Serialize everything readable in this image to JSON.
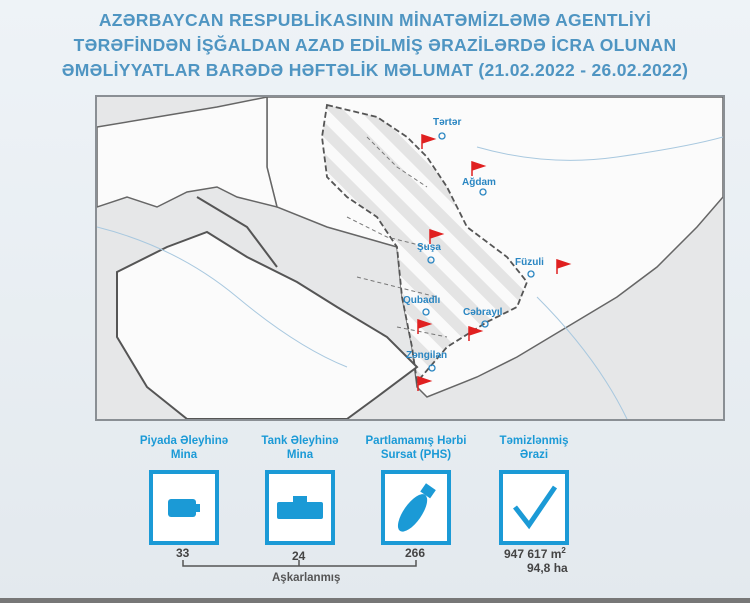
{
  "header": {
    "title_lines": [
      "AZƏRBAYCAN RESPUBLİKASININ MİNATƏMİZLƏMƏ AGENTLİYİ",
      "TƏRƏFİNDƏN İŞĞALDAN AZAD EDİLMİŞ ƏRAZİLƏRDƏ İCRA OLUNAN",
      "ƏMƏLİYYATLAR BARƏDƏ HƏFTƏLİK MƏLUMAT (21.02.2022 - 26.02.2022)"
    ]
  },
  "map": {
    "flag_color": "#e02020",
    "label_color": "#2a86c2",
    "locations": [
      {
        "name": "Tərtər"
      },
      {
        "name": "Ağdam"
      },
      {
        "name": "Şuşa"
      },
      {
        "name": "Füzuli"
      },
      {
        "name": "Qubadlı"
      },
      {
        "name": "Cəbrayıl"
      },
      {
        "name": "Zəngilan"
      }
    ]
  },
  "stats": [
    {
      "title_1": "Piyada Əleyhinə",
      "title_2": "Mina",
      "value": "33",
      "icon": "antipersonnel-mine-icon"
    },
    {
      "title_1": "Tank Əleyhinə",
      "title_2": "Mina",
      "value": "24",
      "icon": "antitank-mine-icon"
    },
    {
      "title_1": "Partlamamış Hərbi",
      "title_2": "Sursat (PHS)",
      "value": "266",
      "icon": "bomb-icon"
    },
    {
      "title_1": "Təmizlənmiş",
      "title_2": "Ərazi",
      "value": "947 617 m",
      "value_sup": "2",
      "value_2": "94,8 ha",
      "icon": "checkmark-icon"
    }
  ],
  "detected_label": "Aşkarlanmış",
  "accent": "#1b9ad6"
}
